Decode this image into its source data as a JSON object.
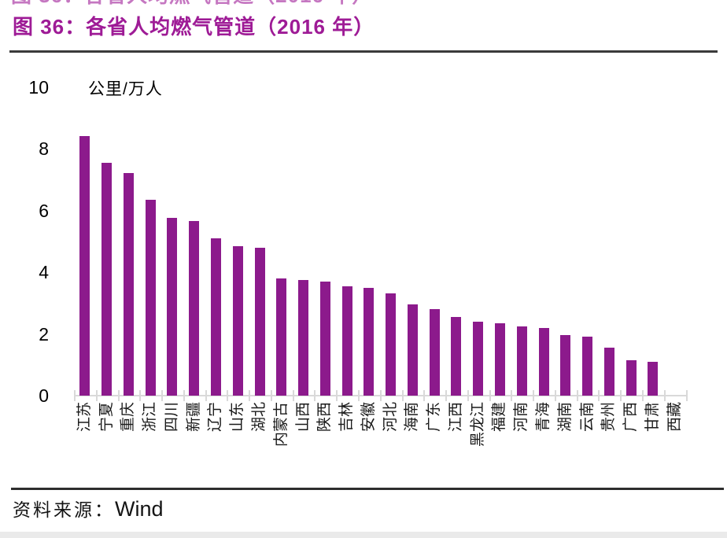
{
  "page": {
    "title": "图 36：各省人均燃气管道（2016 年）",
    "source_label": "资料来源：",
    "source_value": "Wind"
  },
  "chart_data": {
    "type": "bar",
    "title": "图 36：各省人均燃气管道（2016 年）",
    "unit_label": "公里/万人",
    "ylabel": "公里/万人",
    "xlabel": "",
    "ylim": [
      0,
      10
    ],
    "yticks": [
      0,
      2,
      4,
      6,
      8,
      10
    ],
    "grid": false,
    "legend_position": "none",
    "categories": [
      "江苏",
      "宁夏",
      "重庆",
      "浙江",
      "四川",
      "新疆",
      "辽宁",
      "山东",
      "湖北",
      "内蒙古",
      "山西",
      "陕西",
      "吉林",
      "安徽",
      "河北",
      "海南",
      "广东",
      "江西",
      "黑龙江",
      "福建",
      "河南",
      "青海",
      "湖南",
      "云南",
      "贵州",
      "广西",
      "甘肃",
      "西藏"
    ],
    "values": [
      8.4,
      7.55,
      7.2,
      6.35,
      5.75,
      5.65,
      5.1,
      4.85,
      4.8,
      3.8,
      3.75,
      3.7,
      3.55,
      3.5,
      3.3,
      2.95,
      2.8,
      2.55,
      2.4,
      2.35,
      2.25,
      2.2,
      1.95,
      1.9,
      1.55,
      1.15,
      1.1,
      0
    ],
    "source": "Wind"
  },
  "colors": {
    "title": "#9e1b96",
    "bar": "#8c1a8c",
    "axis_line": "#d9d9d9",
    "text": "#000000",
    "rule": "#3a3a3a"
  }
}
